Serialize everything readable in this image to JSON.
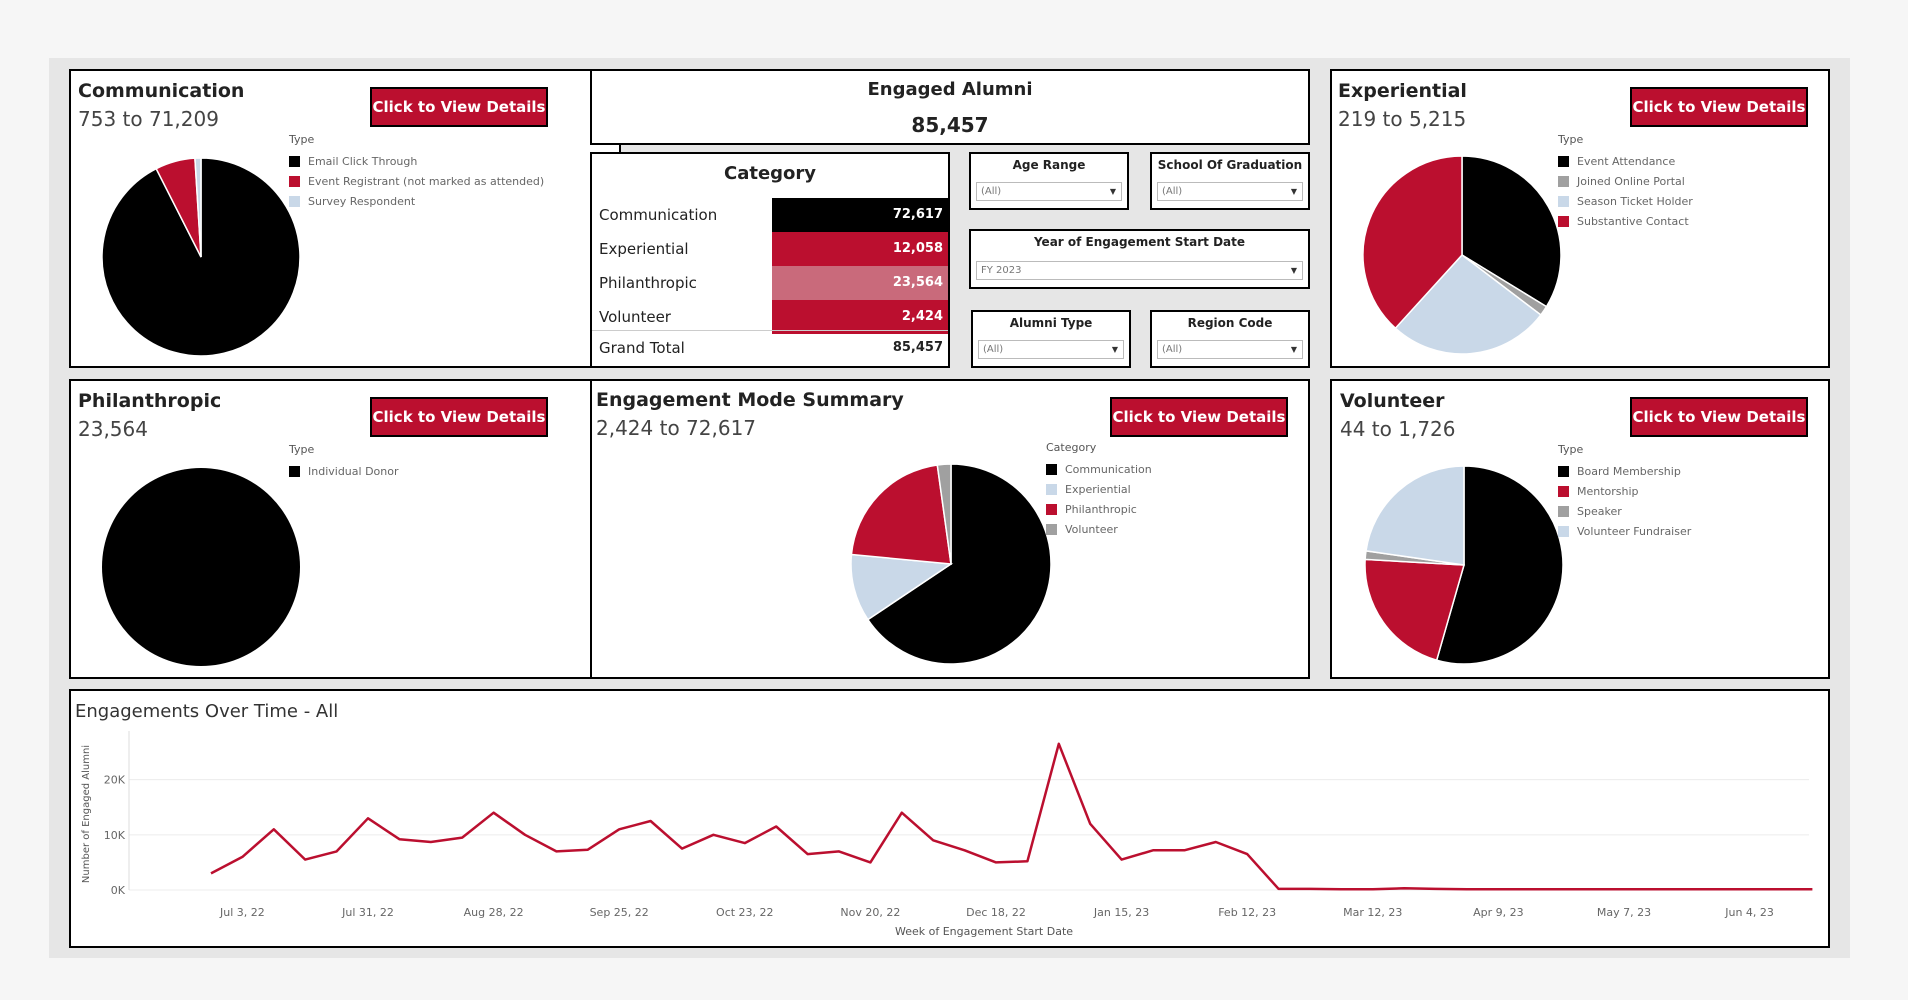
{
  "colors": {
    "red": "#bb0f2f",
    "black": "#000000",
    "light_blue": "#c9d8e8",
    "gray": "#a0a0a0",
    "pink": "#c96a7b"
  },
  "button_label": "Click to View Details",
  "communication": {
    "title": "Communication",
    "range": "753 to 71,209",
    "legend_title": "Type",
    "legend": [
      {
        "label": "Email Click Through",
        "color": "#000000"
      },
      {
        "label": "Event Registrant (not marked as attended)",
        "color": "#bb0f2f"
      },
      {
        "label": "Survey Respondent",
        "color": "#c9d8e8"
      }
    ],
    "pie_values": [
      71209,
      5000,
      753
    ],
    "pie_colors": [
      "#000000",
      "#bb0f2f",
      "#c9d8e8"
    ]
  },
  "engaged": {
    "title": "Engaged Alumni",
    "value": "85,457"
  },
  "category": {
    "title": "Category",
    "rows": [
      {
        "label": "Communication",
        "value": "72,617",
        "color": "#000000"
      },
      {
        "label": "Experiential",
        "value": "12,058",
        "color": "#bb0f2f"
      },
      {
        "label": "Philanthropic",
        "value": "23,564",
        "color": "#c96a7b"
      },
      {
        "label": "Volunteer",
        "value": "2,424",
        "color": "#bb0f2f"
      }
    ],
    "total_label": "Grand Total",
    "total_value": "85,457"
  },
  "filters": {
    "age_range": {
      "label": "Age Range",
      "value": "(All)"
    },
    "school": {
      "label": "School Of Graduation",
      "value": "(All)"
    },
    "year": {
      "label": "Year of Engagement Start Date",
      "value": "FY 2023"
    },
    "alumni_type": {
      "label": "Alumni Type",
      "value": "(All)"
    },
    "region": {
      "label": "Region Code",
      "value": "(All)"
    }
  },
  "experiential": {
    "title": "Experiential",
    "range": "219 to 5,215",
    "legend_title": "Type",
    "legend": [
      {
        "label": "Event Attendance",
        "color": "#000000"
      },
      {
        "label": "Joined Online Portal",
        "color": "#a0a0a0"
      },
      {
        "label": "Season Ticket Holder",
        "color": "#c9d8e8"
      },
      {
        "label": "Substantive Contact",
        "color": "#bb0f2f"
      }
    ],
    "pie_values": [
      4600,
      219,
      3600,
      5215
    ],
    "pie_colors": [
      "#000000",
      "#a0a0a0",
      "#c9d8e8",
      "#bb0f2f"
    ]
  },
  "philanthropic": {
    "title": "Philanthropic",
    "range": "23,564",
    "legend_title": "Type",
    "legend": [
      {
        "label": "Individual Donor",
        "color": "#000000"
      }
    ],
    "pie_values": [
      23564
    ],
    "pie_colors": [
      "#000000"
    ]
  },
  "mode_summary": {
    "title": "Engagement Mode Summary",
    "range": "2,424 to 72,617",
    "legend_title": "Category",
    "legend": [
      {
        "label": "Communication",
        "color": "#000000"
      },
      {
        "label": "Experiential",
        "color": "#c9d8e8"
      },
      {
        "label": "Philanthropic",
        "color": "#bb0f2f"
      },
      {
        "label": "Volunteer",
        "color": "#a0a0a0"
      }
    ],
    "pie_values": [
      72617,
      12058,
      23564,
      2424
    ],
    "pie_colors": [
      "#000000",
      "#c9d8e8",
      "#bb0f2f",
      "#a0a0a0"
    ]
  },
  "volunteer": {
    "title": "Volunteer",
    "range": "44 to 1,726",
    "legend_title": "Type",
    "legend": [
      {
        "label": "Board Membership",
        "color": "#000000"
      },
      {
        "label": "Mentorship",
        "color": "#bb0f2f"
      },
      {
        "label": "Speaker",
        "color": "#a0a0a0"
      },
      {
        "label": "Volunteer Fundraiser",
        "color": "#c9d8e8"
      }
    ],
    "pie_values": [
      1726,
      680,
      44,
      720
    ],
    "pie_colors": [
      "#000000",
      "#bb0f2f",
      "#a0a0a0",
      "#c9d8e8"
    ]
  },
  "chart_data": {
    "type": "line",
    "title": "Engagements Over Time - All",
    "xlabel": "Week of Engagement Start Date",
    "ylabel": "Number of Engaged Alumni",
    "ylim": [
      0,
      27000
    ],
    "y_ticks": [
      {
        "value": 0,
        "label": "0K"
      },
      {
        "value": 10000,
        "label": "10K"
      },
      {
        "value": 20000,
        "label": "20K"
      }
    ],
    "x_ticks": [
      {
        "index": 1,
        "label": "Jul 3, 22"
      },
      {
        "index": 5,
        "label": "Jul 31, 22"
      },
      {
        "index": 9,
        "label": "Aug 28, 22"
      },
      {
        "index": 13,
        "label": "Sep 25, 22"
      },
      {
        "index": 17,
        "label": "Oct 23, 22"
      },
      {
        "index": 21,
        "label": "Nov 20, 22"
      },
      {
        "index": 25,
        "label": "Dec 18, 22"
      },
      {
        "index": 29,
        "label": "Jan 15, 23"
      },
      {
        "index": 33,
        "label": "Feb 12, 23"
      },
      {
        "index": 37,
        "label": "Mar 12, 23"
      },
      {
        "index": 41,
        "label": "Apr 9, 23"
      },
      {
        "index": 45,
        "label": "May 7, 23"
      },
      {
        "index": 49,
        "label": "Jun 4, 23"
      }
    ],
    "series": [
      {
        "color": "#bb0f2f",
        "values": [
          3000,
          6000,
          11000,
          5500,
          7000,
          13000,
          9200,
          8700,
          9500,
          14000,
          10000,
          7000,
          7300,
          11000,
          12500,
          7500,
          10000,
          8500,
          11500,
          6500,
          7000,
          5000,
          14000,
          9000,
          7200,
          5000,
          5200,
          26500,
          12000,
          5500,
          7200,
          7200,
          8700,
          6500,
          200,
          200,
          150,
          150,
          300,
          200,
          150,
          150,
          150,
          150,
          150,
          150,
          150,
          150,
          150,
          150,
          150,
          150
        ]
      }
    ]
  }
}
